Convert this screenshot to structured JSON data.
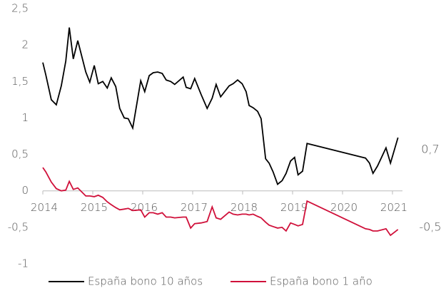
{
  "chart_data": {
    "type": "line",
    "x": [
      2014.0,
      2014.06,
      2014.17,
      2014.27,
      2014.37,
      2014.46,
      2014.53,
      2014.61,
      2014.7,
      2014.86,
      2014.94,
      2015.03,
      2015.11,
      2015.2,
      2015.29,
      2015.37,
      2015.46,
      2015.54,
      2015.63,
      2015.71,
      2015.8,
      2015.96,
      2016.04,
      2016.13,
      2016.21,
      2016.3,
      2016.39,
      2016.47,
      2016.56,
      2016.64,
      2016.81,
      2016.87,
      2016.96,
      2017.04,
      2017.17,
      2017.29,
      2017.39,
      2017.47,
      2017.56,
      2017.73,
      2017.81,
      2017.9,
      2017.99,
      2018.07,
      2018.13,
      2018.21,
      2018.3,
      2018.37,
      2018.46,
      2018.53,
      2018.61,
      2018.7,
      2018.79,
      2018.87,
      2018.96,
      2019.04,
      2019.11,
      2019.2,
      2019.29,
      2020.46,
      2020.54,
      2020.61,
      2020.7,
      2020.87,
      2020.96,
      2021.11
    ],
    "series": [
      {
        "name": "España bono 10 años",
        "color": "#000000",
        "values": [
          1.76,
          1.59,
          1.25,
          1.18,
          1.44,
          1.78,
          2.24,
          1.81,
          2.06,
          1.63,
          1.49,
          1.72,
          1.47,
          1.5,
          1.41,
          1.55,
          1.43,
          1.13,
          1.0,
          0.99,
          0.86,
          1.51,
          1.36,
          1.58,
          1.62,
          1.63,
          1.61,
          1.52,
          1.5,
          1.46,
          1.56,
          1.42,
          1.4,
          1.54,
          1.32,
          1.13,
          1.27,
          1.46,
          1.29,
          1.44,
          1.47,
          1.52,
          1.47,
          1.36,
          1.17,
          1.14,
          1.09,
          0.99,
          0.44,
          0.38,
          0.26,
          0.09,
          0.14,
          0.24,
          0.41,
          0.46,
          0.22,
          0.27,
          0.65,
          0.45,
          0.38,
          0.24,
          0.34,
          0.59,
          0.38,
          0.73
        ],
        "value_labels": [
          null,
          null,
          null,
          null,
          null,
          null,
          null,
          null,
          null,
          null,
          null,
          null,
          null,
          null,
          null,
          null,
          null,
          null,
          null,
          null,
          null,
          null,
          null,
          null,
          null,
          null,
          null,
          null,
          null,
          null,
          null,
          null,
          null,
          null,
          null,
          null,
          null,
          null,
          null,
          null,
          null,
          null,
          null,
          null,
          null,
          null,
          null,
          null,
          null,
          null,
          null,
          null,
          null,
          null,
          null,
          null,
          null,
          null,
          null,
          null,
          null,
          null,
          null,
          null,
          null,
          "0,7"
        ]
      },
      {
        "name": "España bono 1 año",
        "color": "#d0103a",
        "values": [
          0.32,
          0.26,
          0.12,
          0.03,
          0.0,
          0.01,
          0.13,
          0.02,
          0.04,
          -0.07,
          -0.07,
          -0.08,
          -0.06,
          -0.09,
          -0.15,
          -0.19,
          -0.23,
          -0.26,
          -0.25,
          -0.24,
          -0.27,
          -0.26,
          -0.36,
          -0.3,
          -0.3,
          -0.32,
          -0.3,
          -0.36,
          -0.36,
          -0.37,
          -0.36,
          -0.36,
          -0.51,
          -0.45,
          -0.44,
          -0.42,
          -0.22,
          -0.37,
          -0.39,
          -0.29,
          -0.32,
          -0.33,
          -0.32,
          -0.32,
          -0.33,
          -0.32,
          -0.35,
          -0.37,
          -0.43,
          -0.47,
          -0.49,
          -0.51,
          -0.5,
          -0.55,
          -0.44,
          -0.46,
          -0.48,
          -0.46,
          -0.14,
          -0.52,
          -0.53,
          -0.55,
          -0.55,
          -0.52,
          -0.61,
          -0.53
        ],
        "value_labels": [
          null,
          null,
          null,
          null,
          null,
          null,
          null,
          null,
          null,
          null,
          null,
          null,
          null,
          null,
          null,
          null,
          null,
          null,
          null,
          null,
          null,
          null,
          null,
          null,
          null,
          null,
          null,
          null,
          null,
          null,
          null,
          null,
          null,
          null,
          null,
          null,
          null,
          null,
          null,
          null,
          null,
          null,
          null,
          null,
          null,
          null,
          null,
          null,
          null,
          null,
          null,
          null,
          null,
          null,
          null,
          null,
          null,
          null,
          null,
          null,
          null,
          null,
          null,
          null,
          null,
          "-0,5"
        ]
      }
    ],
    "xlim": [
      2014,
      2021.2
    ],
    "xticks": [
      2014,
      2015,
      2016,
      2017,
      2018,
      2019,
      2020,
      2021
    ],
    "ylim": [
      -1,
      2.5
    ],
    "yticks": [
      {
        "value": 2.5,
        "label": "2,5"
      },
      2,
      {
        "value": 1.5,
        "label": "1,5"
      },
      1,
      {
        "value": 0.5,
        "label": "0,5"
      },
      0,
      {
        "value": -0.5,
        "label": "-0,5"
      },
      -1
    ],
    "grid": false,
    "legend": "bottom"
  }
}
